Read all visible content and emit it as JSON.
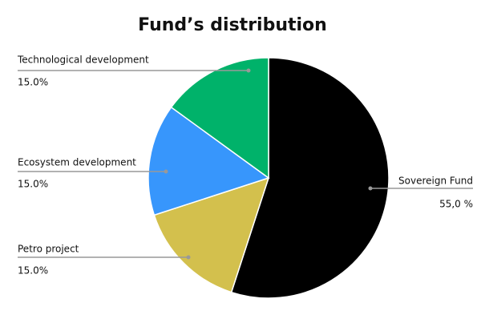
{
  "chart_data": {
    "type": "pie",
    "title": "Fund’s distribution",
    "categories": [
      "Sovereign Fund",
      "Petro project",
      "Ecosystem development",
      "Technological development"
    ],
    "values": [
      55,
      15,
      15,
      15
    ],
    "value_labels": [
      "55,0 %",
      "15.0%",
      "15.0%",
      "15.0%"
    ],
    "colors": [
      "#000000",
      "#d3c04d",
      "#3796fc",
      "#00b26a"
    ]
  }
}
